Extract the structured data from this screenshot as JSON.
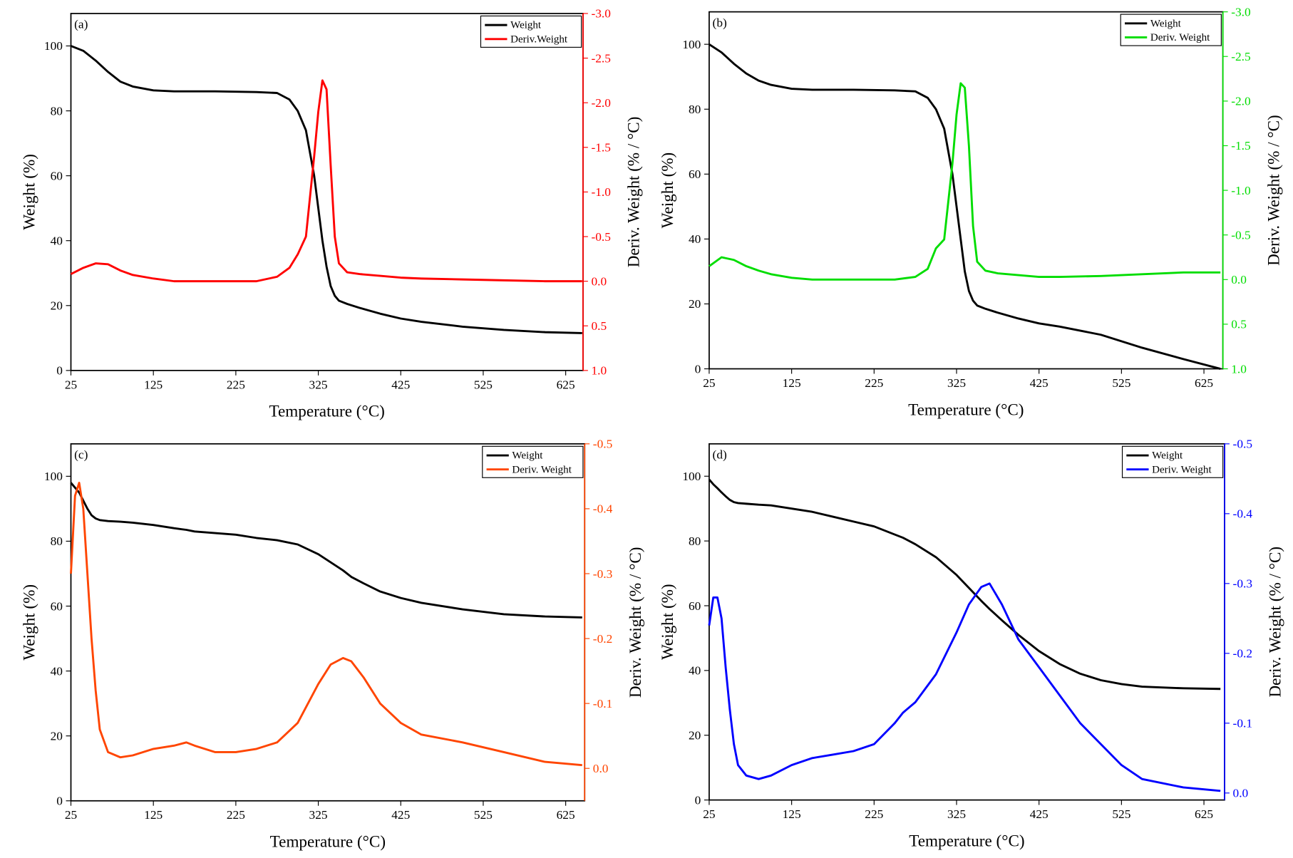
{
  "chart_data": [
    {
      "type": "line",
      "annotation": "(a)",
      "x_label": "Temperature (°C)",
      "y_label": "Weight (%)",
      "y2_label": "Deriv. Weight (% / °C)",
      "x": [
        25,
        40,
        55,
        70,
        85,
        100,
        125,
        150,
        200,
        250,
        275,
        290,
        300,
        310,
        320,
        325,
        330,
        335,
        340,
        345,
        350,
        360,
        375,
        400,
        425,
        450,
        500,
        550,
        600,
        645
      ],
      "series": [
        {
          "name": "Weight",
          "color": "#000000",
          "values": [
            100,
            98.5,
            95.5,
            92,
            89,
            87.5,
            86.3,
            86,
            86,
            85.8,
            85.5,
            83.5,
            80,
            74,
            60,
            50,
            40,
            32,
            26,
            23,
            21.5,
            20.5,
            19.3,
            17.5,
            16,
            15,
            13.5,
            12.5,
            11.8,
            11.5
          ]
        },
        {
          "name": "Deriv.Weight",
          "color": "#ff0000",
          "axis": "y2",
          "values": [
            -0.08,
            -0.15,
            -0.2,
            -0.19,
            -0.12,
            -0.07,
            -0.03,
            0,
            0,
            0,
            -0.05,
            -0.15,
            -0.3,
            -0.5,
            -1.4,
            -1.9,
            -2.25,
            -2.15,
            -1.3,
            -0.5,
            -0.2,
            -0.1,
            -0.08,
            -0.06,
            -0.04,
            -0.03,
            -0.02,
            -0.01,
            0,
            0
          ]
        }
      ],
      "xlim": [
        25,
        646
      ],
      "xticks": [
        25,
        125,
        225,
        325,
        425,
        525,
        625
      ],
      "ylim": [
        0,
        110
      ],
      "yticks": [
        0,
        20,
        40,
        60,
        80,
        100
      ],
      "y2lim": [
        1,
        -3
      ],
      "y2ticks": [
        {
          "value": -3,
          "label": "-3.0"
        },
        -2.5,
        {
          "value": -2,
          "label": "-2.0"
        },
        -1.5,
        {
          "value": -1,
          "label": "-1.0"
        },
        -0.5,
        {
          "value": 0,
          "label": "0.0"
        },
        0.5,
        {
          "value": 1,
          "label": "1.0"
        }
      ],
      "legend": "upper right"
    },
    {
      "type": "line",
      "annotation": "(b)",
      "x_label": "Temperature (°C)",
      "y_label": "Weight (%)",
      "y2_label": "Deriv. Weight (% / °C)",
      "x": [
        25,
        40,
        55,
        70,
        85,
        100,
        125,
        150,
        200,
        250,
        275,
        290,
        300,
        310,
        320,
        325,
        330,
        335,
        340,
        345,
        350,
        360,
        375,
        400,
        425,
        450,
        500,
        550,
        600,
        645
      ],
      "series": [
        {
          "name": "Weight",
          "color": "#000000",
          "values": [
            100,
            97.5,
            94,
            91,
            88.8,
            87.5,
            86.3,
            86,
            86,
            85.8,
            85.5,
            83.5,
            80,
            74,
            60,
            50,
            40,
            30,
            24,
            21,
            19.5,
            18.5,
            17.3,
            15.5,
            14,
            13,
            10.5,
            6.5,
            3,
            0
          ]
        },
        {
          "name": "Deriv. Weight",
          "color": "#00dd00",
          "axis": "y2",
          "values": [
            -0.15,
            -0.25,
            -0.22,
            -0.15,
            -0.1,
            -0.06,
            -0.02,
            0,
            0,
            0,
            -0.03,
            -0.12,
            -0.35,
            -0.45,
            -1.3,
            -1.85,
            -2.2,
            -2.15,
            -1.5,
            -0.6,
            -0.2,
            -0.1,
            -0.07,
            -0.05,
            -0.03,
            -0.03,
            -0.04,
            -0.06,
            -0.08,
            -0.08
          ]
        }
      ],
      "xlim": [
        25,
        648
      ],
      "xticks": [
        25,
        125,
        225,
        325,
        425,
        525,
        625
      ],
      "ylim": [
        0,
        110
      ],
      "yticks": [
        0,
        20,
        40,
        60,
        80,
        100
      ],
      "y2lim": [
        1,
        -3
      ],
      "y2ticks": [
        {
          "value": -3,
          "label": "-3.0"
        },
        -2.5,
        {
          "value": -2,
          "label": "-2.0"
        },
        -1.5,
        {
          "value": -1,
          "label": "-1.0"
        },
        -0.5,
        {
          "value": 0,
          "label": "0.0"
        },
        0.5,
        {
          "value": 1,
          "label": "1.0"
        }
      ],
      "legend": "upper right"
    },
    {
      "type": "line",
      "annotation": "(c)",
      "x_label": "Temperature (°C)",
      "y_label": "Weight (%)",
      "y2_label": "Deriv. Weight (% / °C)",
      "x": [
        25,
        30,
        35,
        40,
        45,
        50,
        55,
        60,
        70,
        85,
        100,
        125,
        150,
        165,
        175,
        200,
        225,
        250,
        275,
        300,
        325,
        340,
        355,
        365,
        380,
        400,
        425,
        450,
        500,
        550,
        600,
        645
      ],
      "series": [
        {
          "name": "Weight",
          "color": "#000000",
          "values": [
            98,
            96.5,
            95,
            92.5,
            90,
            88,
            87,
            86.5,
            86.2,
            86,
            85.7,
            85,
            84,
            83.5,
            83,
            82.5,
            82,
            81,
            80.3,
            79,
            76,
            73.5,
            71,
            69,
            67,
            64.5,
            62.5,
            61,
            59,
            57.5,
            56.8,
            56.5
          ]
        },
        {
          "name": "Deriv. Weight",
          "color": "#ff4500",
          "axis": "y2",
          "values": [
            -0.3,
            -0.42,
            -0.44,
            -0.4,
            -0.3,
            -0.2,
            -0.12,
            -0.06,
            -0.025,
            -0.017,
            -0.02,
            -0.03,
            -0.035,
            -0.04,
            -0.035,
            -0.025,
            -0.025,
            -0.03,
            -0.04,
            -0.07,
            -0.13,
            -0.16,
            -0.17,
            -0.165,
            -0.14,
            -0.1,
            -0.07,
            -0.052,
            -0.04,
            -0.025,
            -0.01,
            -0.005
          ]
        }
      ],
      "xlim": [
        25,
        648
      ],
      "xticks": [
        25,
        125,
        225,
        325,
        425,
        525,
        625
      ],
      "ylim": [
        0,
        110
      ],
      "yticks": [
        0,
        20,
        40,
        60,
        80,
        100
      ],
      "y2lim": [
        0.05,
        -0.5
      ],
      "y2ticks": [
        -0.5,
        -0.4,
        -0.3,
        -0.2,
        -0.1,
        {
          "value": 0,
          "label": "0.0"
        }
      ],
      "legend": "upper right"
    },
    {
      "type": "line",
      "annotation": "(d)",
      "x_label": "Temperature (°C)",
      "y_label": "Weight (%)",
      "y2_label": "Deriv. Weight (% / °C)",
      "x": [
        25,
        30,
        35,
        40,
        45,
        50,
        55,
        60,
        70,
        85,
        100,
        125,
        150,
        175,
        200,
        225,
        250,
        260,
        275,
        300,
        325,
        340,
        355,
        365,
        380,
        400,
        425,
        450,
        475,
        500,
        525,
        550,
        600,
        645
      ],
      "series": [
        {
          "name": "Weight",
          "color": "#000000",
          "values": [
            99,
            97.5,
            96.3,
            95,
            93.8,
            92.7,
            92,
            91.7,
            91.5,
            91.2,
            91,
            90,
            89,
            87.5,
            86,
            84.5,
            82,
            81,
            79,
            75,
            69.5,
            65.5,
            61.5,
            59,
            55.5,
            51,
            46,
            42,
            39,
            37,
            35.8,
            35,
            34.5,
            34.3
          ]
        },
        {
          "name": "Deriv. Weight",
          "color": "#0000ff",
          "axis": "y2",
          "values": [
            -0.24,
            -0.28,
            -0.28,
            -0.25,
            -0.18,
            -0.12,
            -0.07,
            -0.04,
            -0.025,
            -0.02,
            -0.025,
            -0.04,
            -0.05,
            -0.055,
            -0.06,
            -0.07,
            -0.1,
            -0.115,
            -0.13,
            -0.17,
            -0.23,
            -0.27,
            -0.295,
            -0.3,
            -0.27,
            -0.22,
            -0.18,
            -0.14,
            -0.1,
            -0.07,
            -0.04,
            -0.02,
            -0.008,
            -0.003
          ]
        }
      ],
      "xlim": [
        25,
        650
      ],
      "xticks": [
        25,
        125,
        225,
        325,
        425,
        525,
        625
      ],
      "ylim": [
        0,
        110
      ],
      "yticks": [
        0,
        20,
        40,
        60,
        80,
        100
      ],
      "y2lim": [
        0.01,
        -0.5
      ],
      "y2ticks": [
        -0.5,
        -0.4,
        -0.3,
        -0.2,
        -0.1,
        {
          "value": 0,
          "label": "0.0"
        }
      ],
      "legend": "upper right"
    }
  ]
}
